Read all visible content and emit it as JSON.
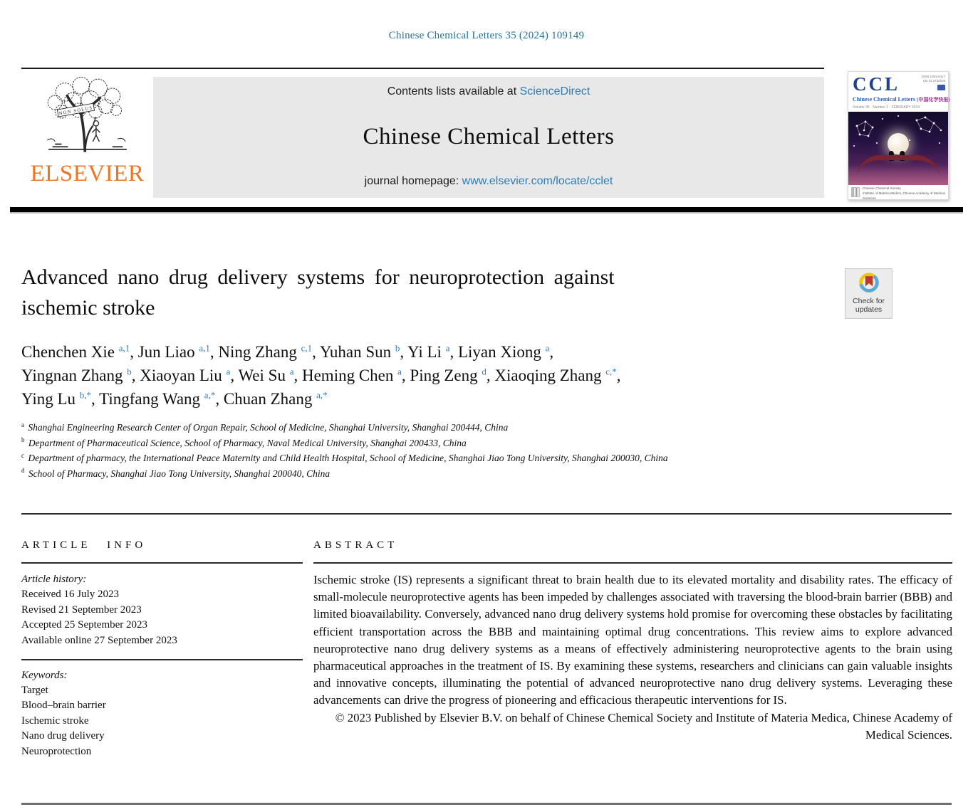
{
  "page": {
    "citation": "Chinese Chemical Letters 35 (2024) 109149"
  },
  "banner": {
    "contents_text": "Contents lists available at",
    "sciencedirect_link": "ScienceDirect",
    "journal_title": "Chinese Chemical Letters",
    "homepage_text": "journal homepage:",
    "homepage_link": "www.elsevier.com/locate/cclet"
  },
  "publisher": {
    "name": "ELSEVIER",
    "motto": "NON SOLUS"
  },
  "cover": {
    "abbrev": "CCL",
    "title": "Chinese Chemical Letters",
    "title_cn": "(中国化学快报)",
    "issue_info": "Volume 35 · Number 2 · FEBRUARY 2024",
    "issn": "ISSN 1001-8417",
    "cn_code": "CN 11-2710/O6",
    "society_line1": "Chinese Chemical Society",
    "society_line2": "Institute of Materia Medica, Chinese Academy of Medical Sciences"
  },
  "badge": {
    "line1": "Check for",
    "line2": "updates"
  },
  "article": {
    "title_lines": [
      "Advanced nano drug delivery systems for neuroprotection against",
      "ischemic stroke"
    ],
    "author_lines": [
      [
        {
          "name": "Chenchen Xie",
          "sup": "a,1"
        },
        {
          "name": "Jun Liao",
          "sup": "a,1"
        },
        {
          "name": "Ning Zhang",
          "sup": "c,1"
        },
        {
          "name": "Yuhan Sun",
          "sup": "b"
        },
        {
          "name": "Yi Li",
          "sup": "a"
        },
        {
          "name": "Liyan Xiong",
          "sup": "a"
        }
      ],
      [
        {
          "name": "Yingnan Zhang",
          "sup": "b"
        },
        {
          "name": "Xiaoyan Liu",
          "sup": "a"
        },
        {
          "name": "Wei Su",
          "sup": "a"
        },
        {
          "name": "Heming Chen",
          "sup": "a"
        },
        {
          "name": "Ping Zeng",
          "sup": "d"
        },
        {
          "name": "Xiaoqing Zhang",
          "sup": "c,*"
        }
      ],
      [
        {
          "name": "Ying Lu",
          "sup": "b,*"
        },
        {
          "name": "Tingfang Wang",
          "sup": "a,*"
        },
        {
          "name": "Chuan Zhang",
          "sup": "a,*"
        }
      ]
    ],
    "affiliations": [
      {
        "sup": "a",
        "text": "Shanghai Engineering Research Center of Organ Repair, School of Medicine, Shanghai University, Shanghai 200444, China"
      },
      {
        "sup": "b",
        "text": "Department of Pharmaceutical Science, School of Pharmacy, Naval Medical University, Shanghai 200433, China"
      },
      {
        "sup": "c",
        "text": "Department of pharmacy, the International Peace Maternity and Child Health Hospital, School of Medicine, Shanghai Jiao Tong University, Shanghai 200030, China"
      },
      {
        "sup": "d",
        "text": "School of Pharmacy, Shanghai Jiao Tong University, Shanghai 200040, China"
      }
    ]
  },
  "article_info": {
    "heading": "ARTICLE INFO",
    "history_label": "Article history:",
    "history": [
      "Received 16 July 2023",
      "Revised 21 September 2023",
      "Accepted 25 September 2023",
      "Available online 27 September 2023"
    ],
    "keywords_label": "Keywords:",
    "keywords": [
      "Target",
      "Blood–brain barrier",
      "Ischemic stroke",
      "Nano drug delivery",
      "Neuroprotection"
    ]
  },
  "abstract": {
    "heading": "ABSTRACT",
    "text": "Ischemic stroke (IS) represents a significant threat to brain health due to its elevated mortality and disability rates. The efficacy of small-molecule neuroprotective agents has been impeded by challenges associated with traversing the blood-brain barrier (BBB) and limited bioavailability. Conversely, advanced nano drug delivery systems hold promise for overcoming these obstacles by facilitating efficient transportation across the BBB and maintaining optimal drug concentrations. This review aims to explore advanced neuroprotective nano drug delivery systems as a means of effectively administering neuroprotective agents to the brain using pharmaceutical approaches in the treatment of IS. By examining these systems, researchers and clinicians can gain valuable insights and innovative concepts, illuminating the potential of advanced neuroprotective nano drug delivery systems. Leveraging these advancements can drive the progress of pioneering and efficacious therapeutic interventions for IS.",
    "copyright": "© 2023 Published by Elsevier B.V. on behalf of Chinese Chemical Society and Institute of Materia Medica, Chinese Academy of Medical Sciences."
  },
  "colors": {
    "link_blue": "#2e7cb8",
    "citation_teal": "#24719a",
    "elsevier_orange": "#ee7623",
    "banner_gray": "#e8e8e8",
    "badge_red": "#c0392b",
    "badge_blue": "#57aadb",
    "badge_yellow": "#f1c40f"
  }
}
